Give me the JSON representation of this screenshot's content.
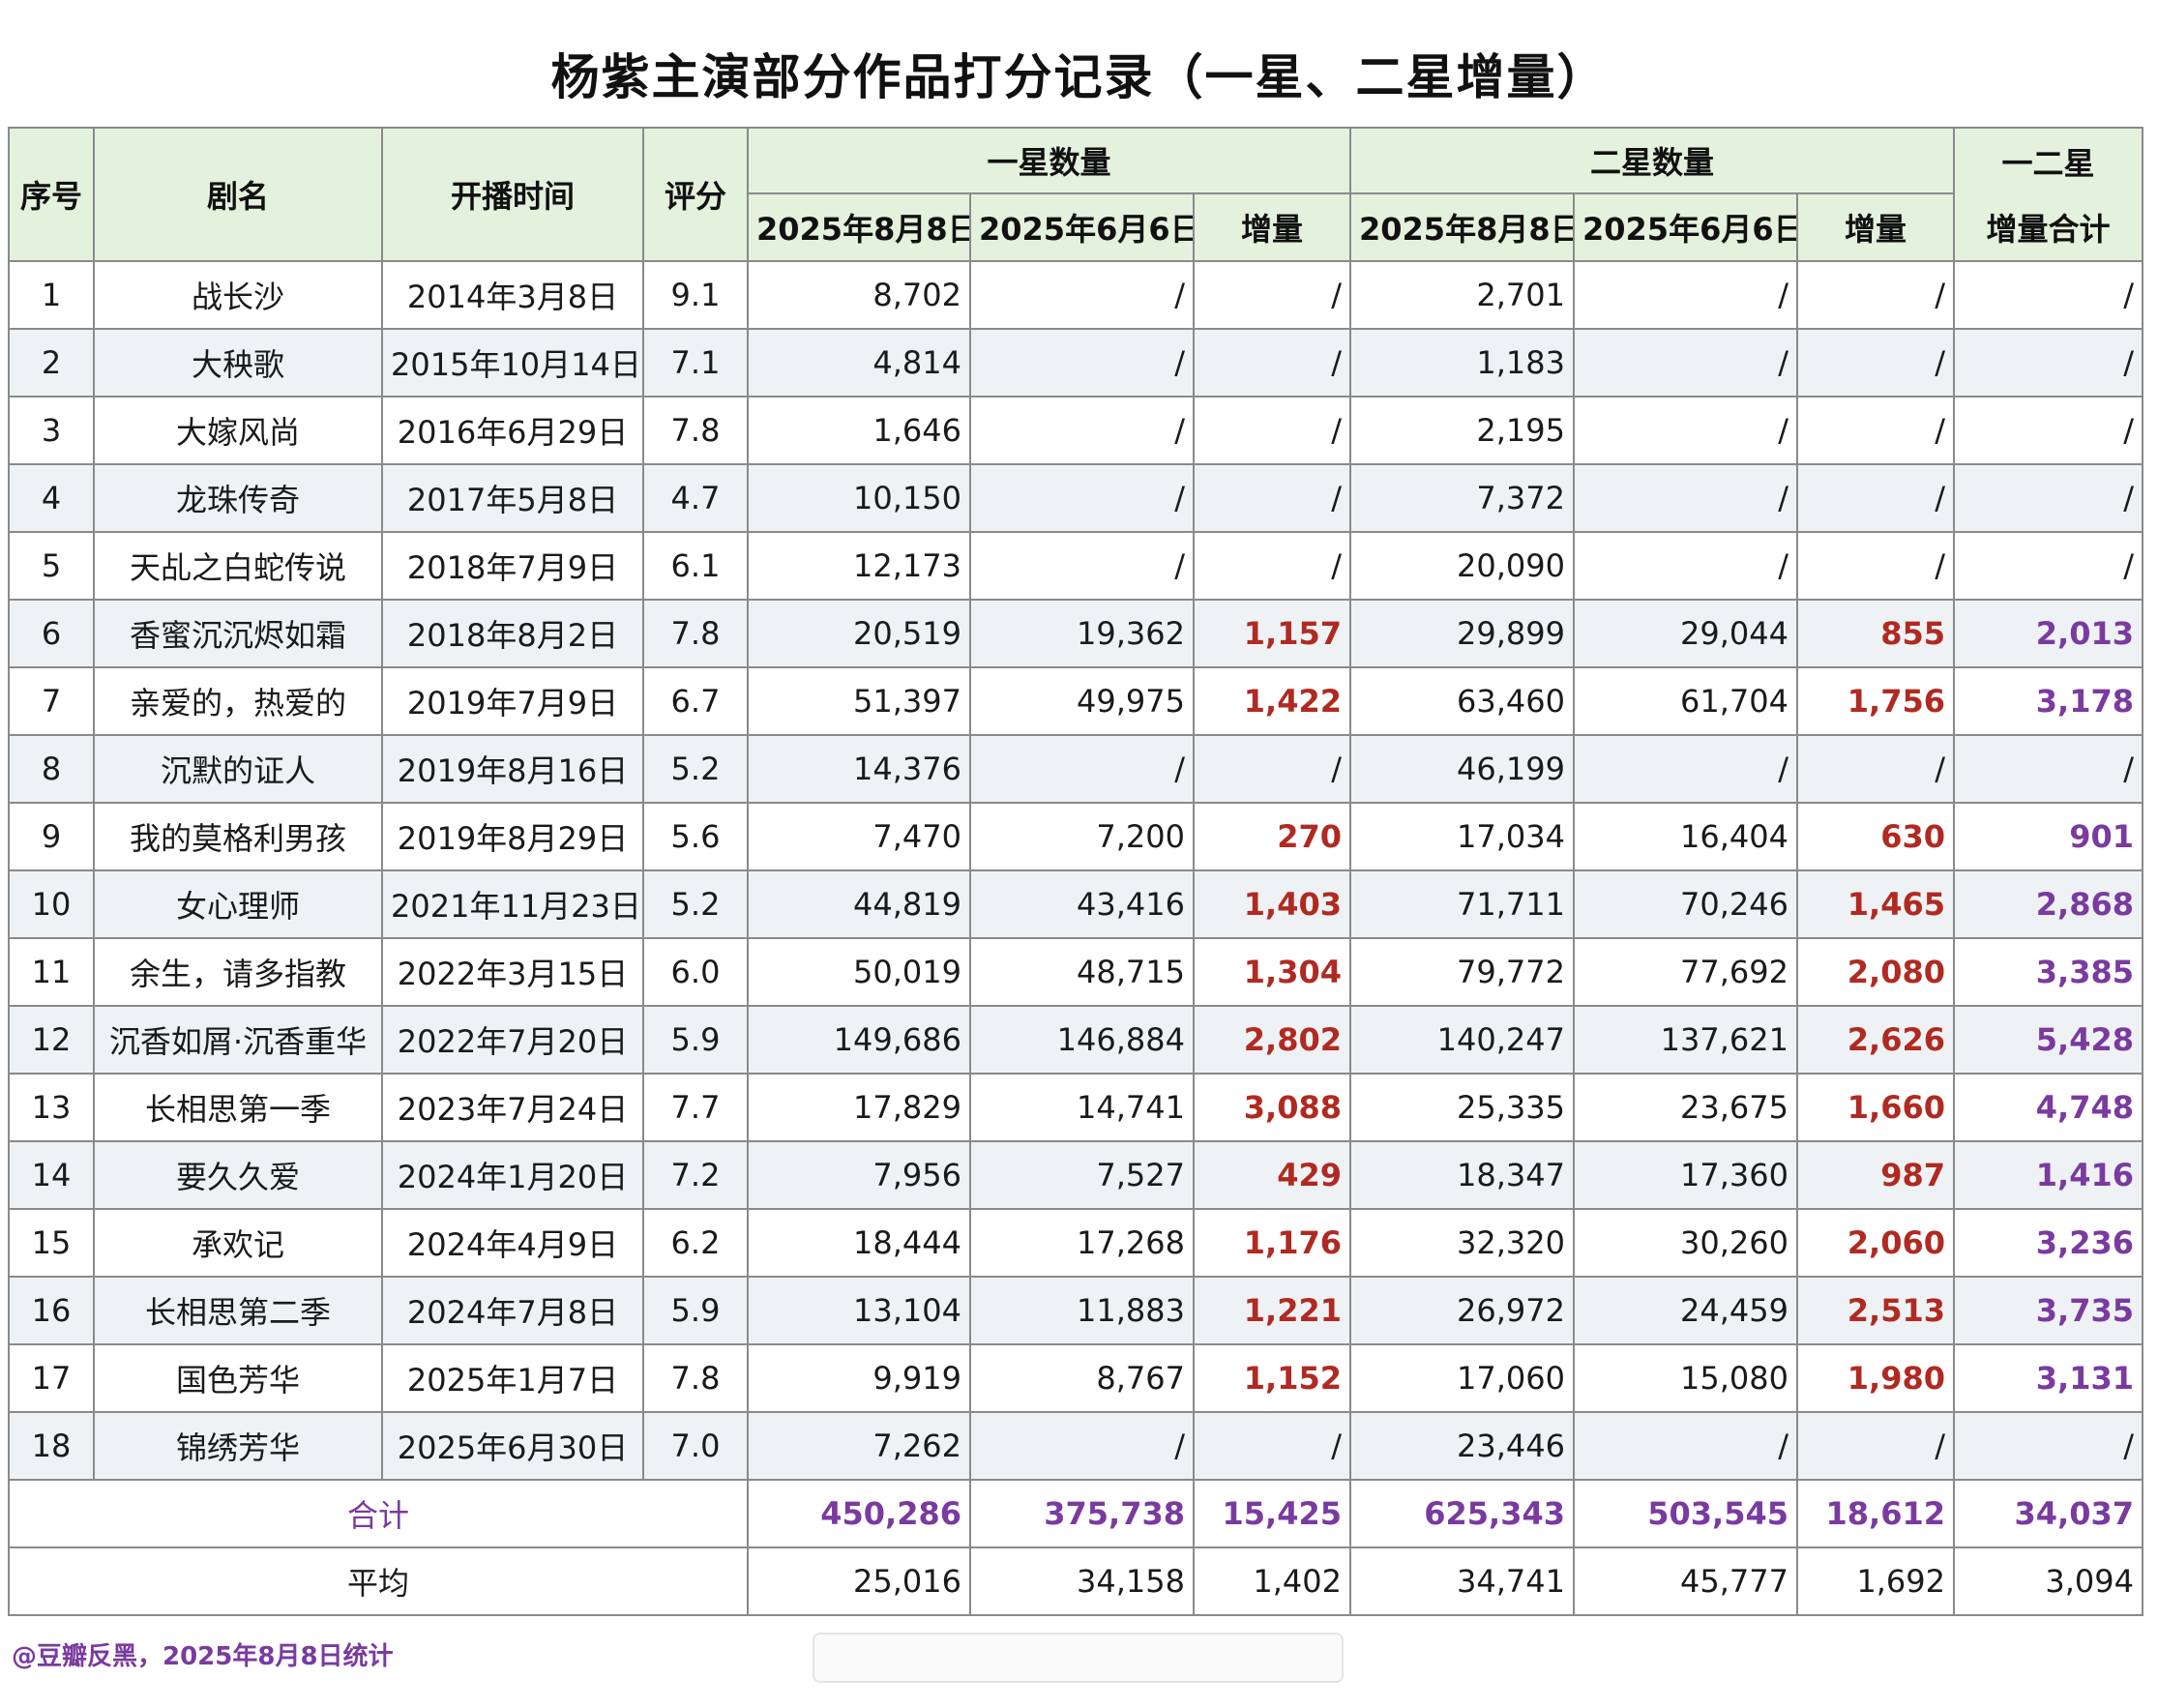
{
  "title": "杨紫主演部分作品打分记录（一星、二星增量）",
  "headers": {
    "index": "序号",
    "name": "剧名",
    "air_date": "开播时间",
    "score": "评分",
    "one_star_group": "一星数量",
    "two_star_group": "二星数量",
    "combined_group_line1": "一二星",
    "combined_group_line2": "增量合计",
    "date_aug": "2025年8月8日",
    "date_jun": "2025年6月6日",
    "delta": "增量"
  },
  "rows": [
    {
      "idx": "1",
      "name": "战长沙",
      "date": "2014年3月8日",
      "score": "9.1",
      "s1_aug": "8,702",
      "s1_jun": "/",
      "s1_inc": "/",
      "s2_aug": "2,701",
      "s2_jun": "/",
      "s2_inc": "/",
      "total_inc": "/"
    },
    {
      "idx": "2",
      "name": "大秧歌",
      "date": "2015年10月14日",
      "score": "7.1",
      "s1_aug": "4,814",
      "s1_jun": "/",
      "s1_inc": "/",
      "s2_aug": "1,183",
      "s2_jun": "/",
      "s2_inc": "/",
      "total_inc": "/"
    },
    {
      "idx": "3",
      "name": "大嫁风尚",
      "date": "2016年6月29日",
      "score": "7.8",
      "s1_aug": "1,646",
      "s1_jun": "/",
      "s1_inc": "/",
      "s2_aug": "2,195",
      "s2_jun": "/",
      "s2_inc": "/",
      "total_inc": "/"
    },
    {
      "idx": "4",
      "name": "龙珠传奇",
      "date": "2017年5月8日",
      "score": "4.7",
      "s1_aug": "10,150",
      "s1_jun": "/",
      "s1_inc": "/",
      "s2_aug": "7,372",
      "s2_jun": "/",
      "s2_inc": "/",
      "total_inc": "/"
    },
    {
      "idx": "5",
      "name": "天乩之白蛇传说",
      "date": "2018年7月9日",
      "score": "6.1",
      "s1_aug": "12,173",
      "s1_jun": "/",
      "s1_inc": "/",
      "s2_aug": "20,090",
      "s2_jun": "/",
      "s2_inc": "/",
      "total_inc": "/"
    },
    {
      "idx": "6",
      "name": "香蜜沉沉烬如霜",
      "date": "2018年8月2日",
      "score": "7.8",
      "s1_aug": "20,519",
      "s1_jun": "19,362",
      "s1_inc": "1,157",
      "s2_aug": "29,899",
      "s2_jun": "29,044",
      "s2_inc": "855",
      "total_inc": "2,013"
    },
    {
      "idx": "7",
      "name": "亲爱的，热爱的",
      "date": "2019年7月9日",
      "score": "6.7",
      "s1_aug": "51,397",
      "s1_jun": "49,975",
      "s1_inc": "1,422",
      "s2_aug": "63,460",
      "s2_jun": "61,704",
      "s2_inc": "1,756",
      "total_inc": "3,178"
    },
    {
      "idx": "8",
      "name": "沉默的证人",
      "date": "2019年8月16日",
      "score": "5.2",
      "s1_aug": "14,376",
      "s1_jun": "/",
      "s1_inc": "/",
      "s2_aug": "46,199",
      "s2_jun": "/",
      "s2_inc": "/",
      "total_inc": "/"
    },
    {
      "idx": "9",
      "name": "我的莫格利男孩",
      "date": "2019年8月29日",
      "score": "5.6",
      "s1_aug": "7,470",
      "s1_jun": "7,200",
      "s1_inc": "270",
      "s2_aug": "17,034",
      "s2_jun": "16,404",
      "s2_inc": "630",
      "total_inc": "901"
    },
    {
      "idx": "10",
      "name": "女心理师",
      "date": "2021年11月23日",
      "score": "5.2",
      "s1_aug": "44,819",
      "s1_jun": "43,416",
      "s1_inc": "1,403",
      "s2_aug": "71,711",
      "s2_jun": "70,246",
      "s2_inc": "1,465",
      "total_inc": "2,868"
    },
    {
      "idx": "11",
      "name": "余生，请多指教",
      "date": "2022年3月15日",
      "score": "6.0",
      "s1_aug": "50,019",
      "s1_jun": "48,715",
      "s1_inc": "1,304",
      "s2_aug": "79,772",
      "s2_jun": "77,692",
      "s2_inc": "2,080",
      "total_inc": "3,385"
    },
    {
      "idx": "12",
      "name": "沉香如屑·沉香重华",
      "date": "2022年7月20日",
      "score": "5.9",
      "s1_aug": "149,686",
      "s1_jun": "146,884",
      "s1_inc": "2,802",
      "s2_aug": "140,247",
      "s2_jun": "137,621",
      "s2_inc": "2,626",
      "total_inc": "5,428"
    },
    {
      "idx": "13",
      "name": "长相思第一季",
      "date": "2023年7月24日",
      "score": "7.7",
      "s1_aug": "17,829",
      "s1_jun": "14,741",
      "s1_inc": "3,088",
      "s2_aug": "25,335",
      "s2_jun": "23,675",
      "s2_inc": "1,660",
      "total_inc": "4,748"
    },
    {
      "idx": "14",
      "name": "要久久爱",
      "date": "2024年1月20日",
      "score": "7.2",
      "s1_aug": "7,956",
      "s1_jun": "7,527",
      "s1_inc": "429",
      "s2_aug": "18,347",
      "s2_jun": "17,360",
      "s2_inc": "987",
      "total_inc": "1,416"
    },
    {
      "idx": "15",
      "name": "承欢记",
      "date": "2024年4月9日",
      "score": "6.2",
      "s1_aug": "18,444",
      "s1_jun": "17,268",
      "s1_inc": "1,176",
      "s2_aug": "32,320",
      "s2_jun": "30,260",
      "s2_inc": "2,060",
      "total_inc": "3,236"
    },
    {
      "idx": "16",
      "name": "长相思第二季",
      "date": "2024年7月8日",
      "score": "5.9",
      "s1_aug": "13,104",
      "s1_jun": "11,883",
      "s1_inc": "1,221",
      "s2_aug": "26,972",
      "s2_jun": "24,459",
      "s2_inc": "2,513",
      "total_inc": "3,735"
    },
    {
      "idx": "17",
      "name": "国色芳华",
      "date": "2025年1月7日",
      "score": "7.8",
      "s1_aug": "9,919",
      "s1_jun": "8,767",
      "s1_inc": "1,152",
      "s2_aug": "17,060",
      "s2_jun": "15,080",
      "s2_inc": "1,980",
      "total_inc": "3,131"
    },
    {
      "idx": "18",
      "name": "锦绣芳华",
      "date": "2025年6月30日",
      "score": "7.0",
      "s1_aug": "7,262",
      "s1_jun": "/",
      "s1_inc": "/",
      "s2_aug": "23,446",
      "s2_jun": "/",
      "s2_inc": "/",
      "total_inc": "/"
    }
  ],
  "total": {
    "label": "合计",
    "s1_aug": "450,286",
    "s1_jun": "375,738",
    "s1_inc": "15,425",
    "s2_aug": "625,343",
    "s2_jun": "503,545",
    "s2_inc": "18,612",
    "total_inc": "34,037"
  },
  "average": {
    "label": "平均",
    "s1_aug": "25,016",
    "s1_jun": "34,158",
    "s1_inc": "1,402",
    "s2_aug": "34,741",
    "s2_jun": "45,777",
    "s2_inc": "1,692",
    "total_inc": "3,094"
  },
  "footer": "@豆瓣反黑，2025年8月8日统计",
  "colors": {
    "header_bg": "#e3f1dd",
    "increase_red": "#b02a22",
    "total_purple": "#7a3aa0",
    "alt_row": "#eef2f4"
  }
}
